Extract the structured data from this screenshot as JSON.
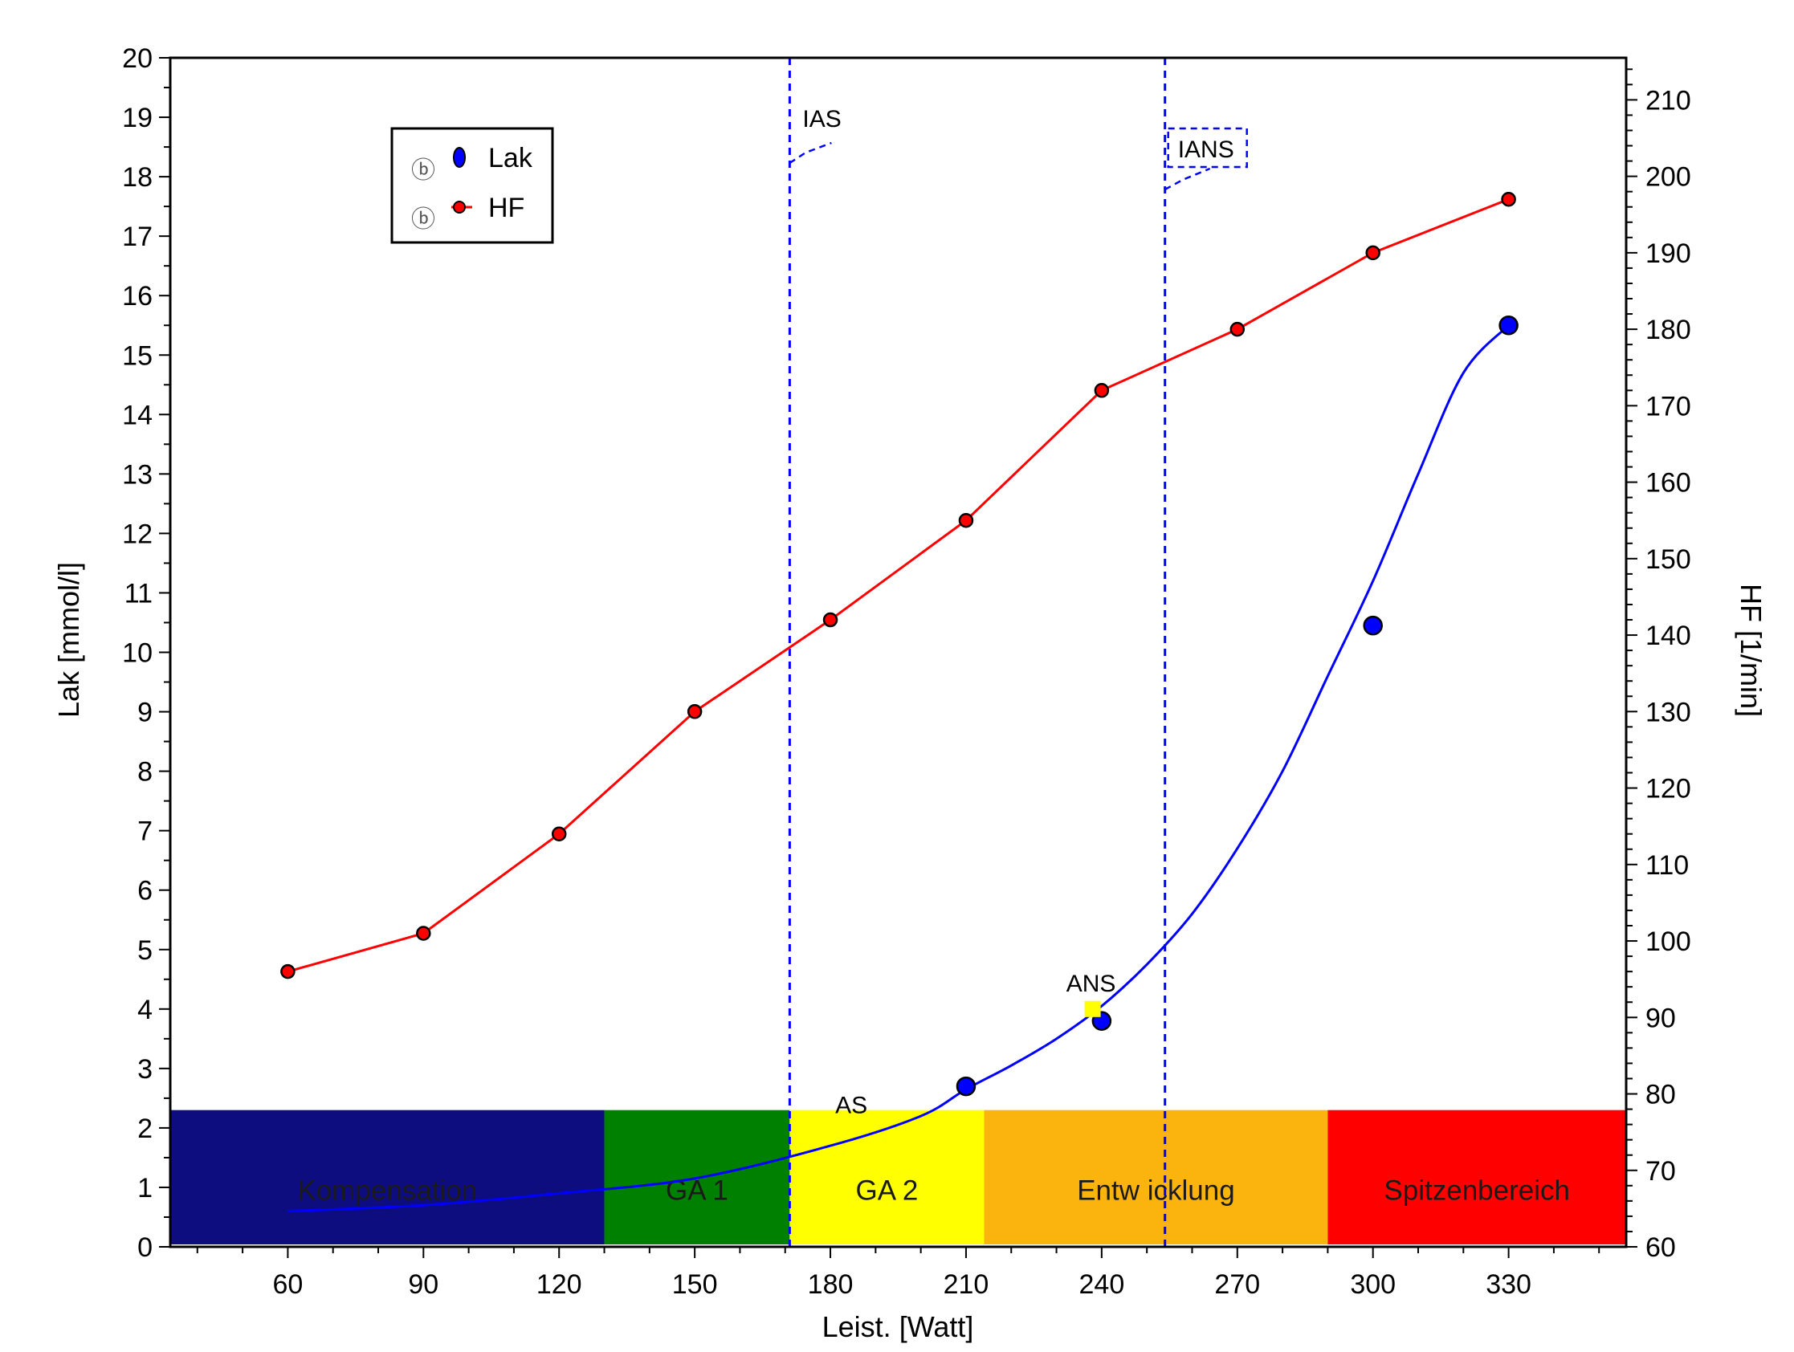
{
  "chart_data": {
    "type": "line",
    "xlabel": "Leist. [Watt]",
    "ylabel": "Lak [mmol/l]",
    "y2label": "HF [1/min]",
    "x_ticks": [
      60,
      90,
      120,
      150,
      180,
      210,
      240,
      270,
      300,
      330
    ],
    "xlim": [
      34,
      356
    ],
    "ylim": [
      0,
      20
    ],
    "y2lim": [
      60,
      215.5
    ],
    "y_ticks": [
      0,
      1,
      2,
      3,
      4,
      5,
      6,
      7,
      8,
      9,
      10,
      11,
      12,
      13,
      14,
      15,
      16,
      17,
      18,
      19,
      20
    ],
    "y2_ticks": [
      60,
      70,
      80,
      90,
      100,
      110,
      120,
      130,
      140,
      150,
      160,
      170,
      180,
      190,
      200,
      210
    ],
    "legend_position": "top-left",
    "series": [
      {
        "name": "HF",
        "axis": "right",
        "color": "#ff0000",
        "x": [
          60,
          90,
          120,
          150,
          180,
          210,
          240,
          270,
          300,
          330
        ],
        "y": [
          96,
          101,
          114,
          130,
          142,
          155,
          172,
          180,
          190,
          197
        ]
      },
      {
        "name": "Lak",
        "axis": "left",
        "color": "#0000ff",
        "x": [
          210,
          240,
          300,
          330
        ],
        "y": [
          2.7,
          3.8,
          10.45,
          15.5
        ]
      }
    ],
    "lak_fit_curve": {
      "color": "#0000ff",
      "x": [
        60,
        90,
        120,
        150,
        180,
        200,
        210,
        220,
        230,
        240,
        250,
        260,
        270,
        280,
        290,
        300,
        310,
        320,
        330
      ],
      "y": [
        0.6,
        0.7,
        0.9,
        1.15,
        1.7,
        2.2,
        2.65,
        3.05,
        3.5,
        4.05,
        4.75,
        5.6,
        6.7,
        8.0,
        9.6,
        11.2,
        13.0,
        14.7,
        15.5
      ]
    },
    "zones": [
      {
        "label": "Kompensation",
        "from": 34,
        "to": 130,
        "color": "#0d0d80"
      },
      {
        "label": "GA 1",
        "from": 130,
        "to": 171,
        "color": "#008000"
      },
      {
        "label": "GA 2",
        "from": 171,
        "to": 214,
        "color": "#ffff00"
      },
      {
        "label": "Entw icklung",
        "from": 214,
        "to": 290,
        "color": "#fbb40e"
      },
      {
        "label": "Spitzenbereich",
        "from": 290,
        "to": 356,
        "color": "#ff0000"
      }
    ],
    "zones_top": 2.3,
    "thresholds": [
      {
        "label": "IAS",
        "x": 171
      },
      {
        "label": "IANS",
        "x": 254
      }
    ],
    "point_annotations": [
      {
        "label": "AS",
        "x": 185,
        "y": 1.95
      },
      {
        "label": "ANS",
        "x": 238,
        "y": 4.0
      }
    ]
  }
}
